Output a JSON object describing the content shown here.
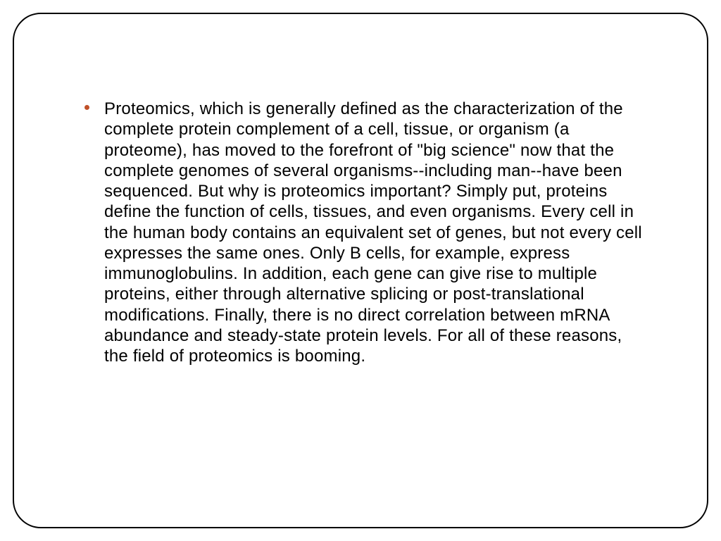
{
  "slide": {
    "background_color": "#ffffff",
    "border_color": "#000000",
    "border_width": 2,
    "border_radius": 40,
    "bullet": {
      "marker_color": "#c05028",
      "marker_size": 7,
      "text_color": "#000000",
      "font_size": 24,
      "font_family": "Arial",
      "line_height": 1.22,
      "text": "Proteomics, which is generally defined as the characterization of the complete protein complement of a cell, tissue, or organism (a proteome), has moved to the forefront of \"big science\" now that the complete genomes of several organisms--including man--have been sequenced. But why is proteomics important? Simply put, proteins define the function of cells, tissues, and even organisms. Every cell in the human body contains an equivalent set of genes, but not every cell expresses the same ones. Only B cells, for example, express immunoglobulins. In addition, each gene can give rise to multiple proteins, either through alternative splicing or post-translational modifications. Finally, there is no direct correlation between mRNA abundance and steady-state protein levels. For all of these reasons, the field of proteomics is booming."
    }
  }
}
